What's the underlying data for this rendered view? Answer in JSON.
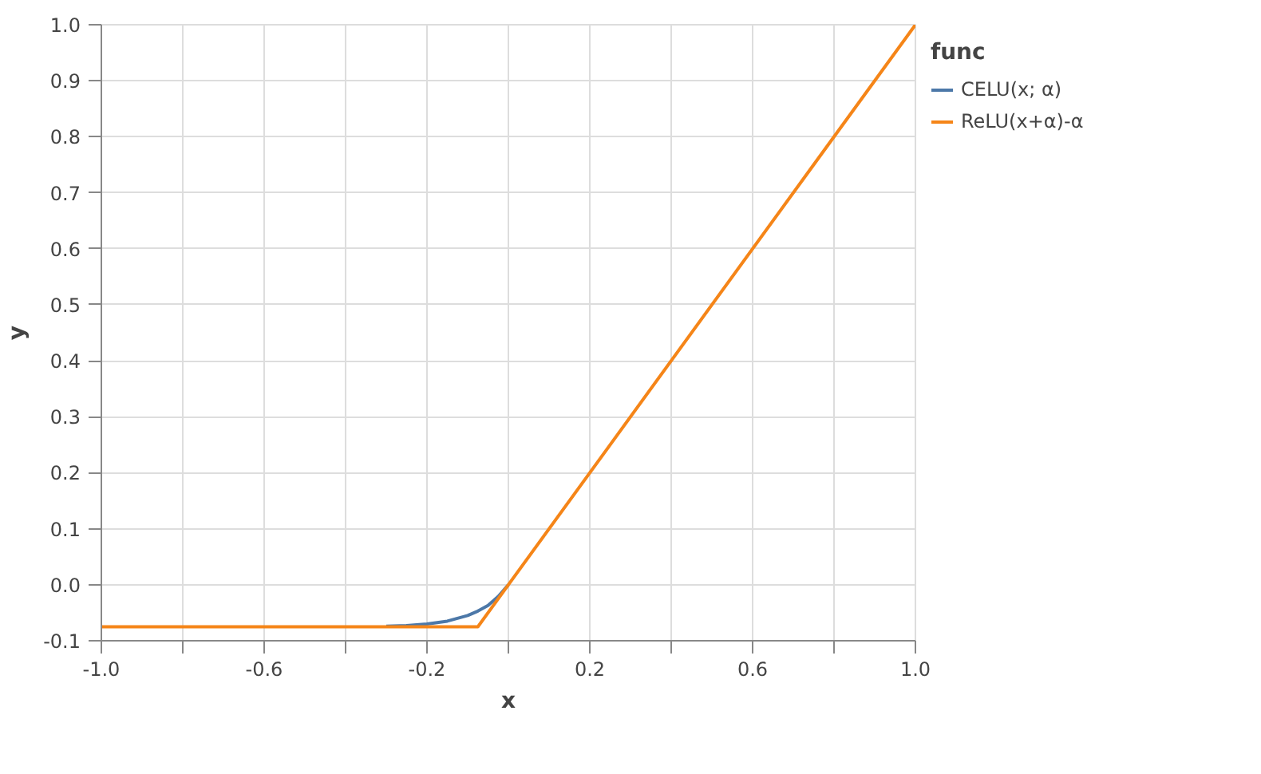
{
  "chart_data": {
    "type": "line",
    "xlabel": "x",
    "ylabel": "y",
    "legend_title": "func",
    "xlim": [
      -1,
      1
    ],
    "ylim": [
      -0.1,
      1.0
    ],
    "xticks": [
      {
        "value": -1,
        "label": "-1.0"
      },
      {
        "value": -0.8,
        "label": null
      },
      {
        "value": -0.6,
        "label": "-0.6"
      },
      {
        "value": -0.4,
        "label": null
      },
      {
        "value": -0.2,
        "label": "-0.2"
      },
      {
        "value": 0,
        "label": null
      },
      {
        "value": 0.2,
        "label": "0.2"
      },
      {
        "value": 0.4,
        "label": null
      },
      {
        "value": 0.6,
        "label": "0.6"
      },
      {
        "value": 0.8,
        "label": null
      },
      {
        "value": 1,
        "label": "1.0"
      }
    ],
    "yticks": [
      {
        "value": -0.1,
        "label": "-0.1"
      },
      {
        "value": 0,
        "label": "0.0"
      },
      {
        "value": 0.1,
        "label": "0.1"
      },
      {
        "value": 0.2,
        "label": "0.2"
      },
      {
        "value": 0.3,
        "label": "0.3"
      },
      {
        "value": 0.4,
        "label": "0.4"
      },
      {
        "value": 0.5,
        "label": "0.5"
      },
      {
        "value": 0.6,
        "label": "0.6"
      },
      {
        "value": 0.7,
        "label": "0.7"
      },
      {
        "value": 0.8,
        "label": "0.8"
      },
      {
        "value": 0.9,
        "label": "0.9"
      },
      {
        "value": 1,
        "label": "1.0"
      }
    ],
    "grid": true,
    "legend": "right",
    "line_style": "solid",
    "marker": "none",
    "series": [
      {
        "name": "CELU(x; α)",
        "color": "#4c78a8",
        "x": [
          -0.3,
          -0.25,
          -0.2,
          -0.15,
          -0.1,
          -0.075,
          -0.05,
          -0.025,
          0
        ],
        "values": [
          -0.074,
          -0.073,
          -0.07,
          -0.065,
          -0.055,
          -0.047,
          -0.037,
          -0.021,
          0
        ]
      },
      {
        "name": "ReLU(x+α)-α",
        "color": "#f58518",
        "x": [
          -1,
          -0.075,
          1
        ],
        "values": [
          -0.075,
          -0.075,
          1
        ]
      }
    ]
  }
}
